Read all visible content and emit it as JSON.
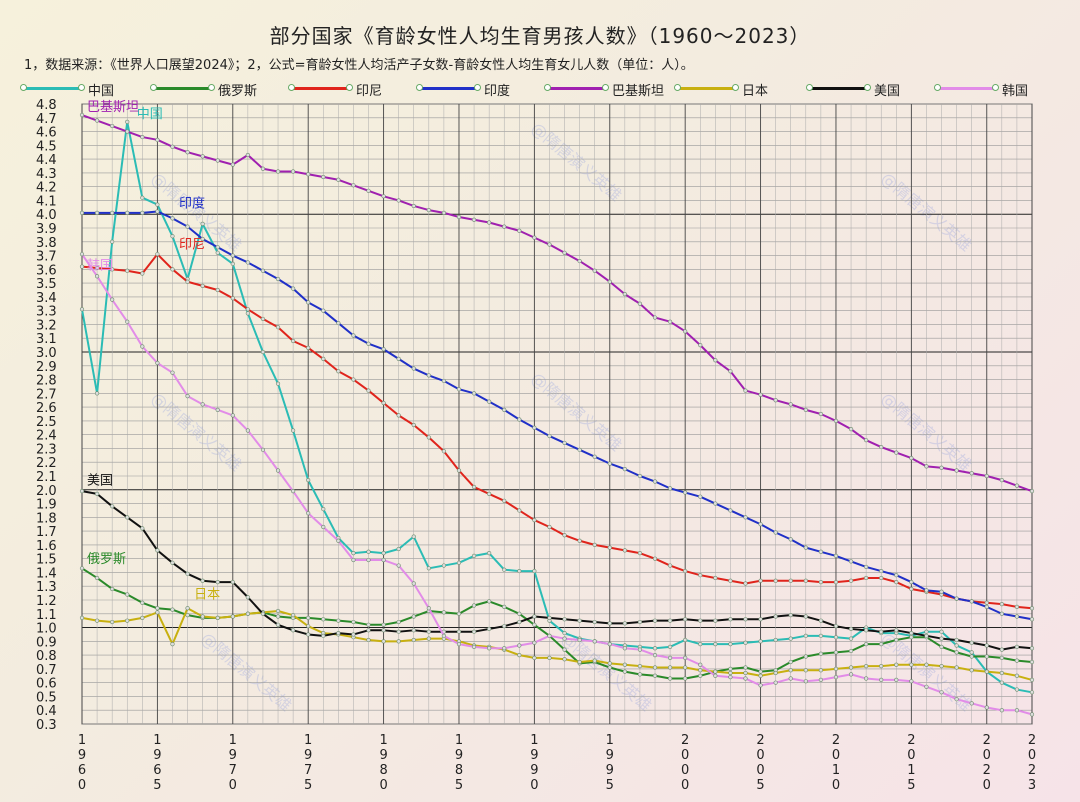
{
  "title": "部分国家《育龄女性人均生育男孩人数》（1960～2023）",
  "note": "1，数据来源：《世界人口展望2024》；2，公式=育龄女性人均活产子女数-育龄女性人均生育女儿人数（单位：人）。",
  "watermark": "@隋唐演义英雄",
  "colors": {
    "中国": "#2bbcb5",
    "俄罗斯": "#2a8a2a",
    "印尼": "#e0241c",
    "印度": "#2030c8",
    "巴基斯坦": "#a020b0",
    "日本": "#c8b010",
    "美国": "#111111",
    "韩国": "#e28ce8"
  },
  "chart_data": {
    "type": "line",
    "title": "部分国家《育龄女性人均生育男孩人数》（1960～2023）",
    "xlabel": "",
    "ylabel": "",
    "xlim": [
      1960,
      2023
    ],
    "ylim": [
      0.3,
      4.8
    ],
    "yticks": [
      "0.3",
      "0.4",
      "0.5",
      "0.6",
      "0.7",
      "0.8",
      "0.9",
      "1.0",
      "1.1",
      "1.2",
      "1.3",
      "1.4",
      "1.5",
      "1.6",
      "1.7",
      "1.8",
      "1.9",
      "2.0",
      "2.1",
      "2.2",
      "2.3",
      "2.4",
      "2.5",
      "2.6",
      "2.7",
      "2.8",
      "2.9",
      "3.0",
      "3.1",
      "3.2",
      "3.3",
      "3.4",
      "3.5",
      "3.6",
      "3.7",
      "3.8",
      "3.9",
      "4.0",
      "4.1",
      "4.2",
      "4.3",
      "4.4",
      "4.5",
      "4.6",
      "4.7",
      "4.8"
    ],
    "xticks": [
      {
        "year": 1960,
        "label": "1960"
      },
      {
        "year": 1965,
        "label": "1965"
      },
      {
        "year": 1970,
        "label": "1970"
      },
      {
        "year": 1975,
        "label": "1975"
      },
      {
        "year": 1980,
        "label": "1980"
      },
      {
        "year": 1985,
        "label": "1985"
      },
      {
        "year": 1990,
        "label": "1990"
      },
      {
        "year": 1995,
        "label": "1995"
      },
      {
        "year": 2000,
        "label": "2000"
      },
      {
        "year": 2005,
        "label": "2005"
      },
      {
        "year": 2010,
        "label": "2010"
      },
      {
        "year": 2015,
        "label": "2015"
      },
      {
        "year": 2020,
        "label": "2020"
      },
      {
        "year": 2023,
        "label": "2023"
      }
    ],
    "grid": true,
    "legend_position": "top",
    "x": [
      1960,
      1961,
      1962,
      1963,
      1964,
      1965,
      1966,
      1967,
      1968,
      1969,
      1970,
      1971,
      1972,
      1973,
      1974,
      1975,
      1976,
      1977,
      1978,
      1979,
      1980,
      1981,
      1982,
      1983,
      1984,
      1985,
      1986,
      1987,
      1988,
      1989,
      1990,
      1991,
      1992,
      1993,
      1994,
      1995,
      1996,
      1997,
      1998,
      1999,
      2000,
      2001,
      2002,
      2003,
      2004,
      2005,
      2006,
      2007,
      2008,
      2009,
      2010,
      2011,
      2012,
      2013,
      2014,
      2015,
      2016,
      2017,
      2018,
      2019,
      2020,
      2021,
      2022,
      2023
    ],
    "series": [
      {
        "name": "中国",
        "label_year": 1963.5,
        "label_value": 4.7,
        "values": [
          3.31,
          2.7,
          3.8,
          4.67,
          4.12,
          4.07,
          3.84,
          3.53,
          3.93,
          3.72,
          3.64,
          3.28,
          3.0,
          2.77,
          2.43,
          2.07,
          1.86,
          1.65,
          1.54,
          1.55,
          1.54,
          1.57,
          1.66,
          1.43,
          1.45,
          1.47,
          1.52,
          1.54,
          1.42,
          1.41,
          1.41,
          1.05,
          0.96,
          0.92,
          0.9,
          0.88,
          0.87,
          0.86,
          0.85,
          0.86,
          0.91,
          0.88,
          0.88,
          0.88,
          0.89,
          0.9,
          0.91,
          0.92,
          0.94,
          0.94,
          0.93,
          0.92,
          1.0,
          0.96,
          0.96,
          0.94,
          0.97,
          0.97,
          0.87,
          0.82,
          0.68,
          0.6,
          0.55,
          0.53
        ]
      },
      {
        "name": "俄罗斯",
        "label_year": 1960.2,
        "label_value": 1.47,
        "values": [
          1.43,
          1.36,
          1.28,
          1.24,
          1.18,
          1.14,
          1.13,
          1.09,
          1.07,
          1.07,
          1.08,
          1.1,
          1.11,
          1.08,
          1.07,
          1.07,
          1.06,
          1.05,
          1.04,
          1.02,
          1.02,
          1.04,
          1.08,
          1.12,
          1.11,
          1.1,
          1.16,
          1.19,
          1.15,
          1.1,
          1.02,
          0.94,
          0.84,
          0.74,
          0.75,
          0.71,
          0.68,
          0.66,
          0.65,
          0.63,
          0.63,
          0.65,
          0.68,
          0.7,
          0.71,
          0.68,
          0.69,
          0.75,
          0.79,
          0.81,
          0.82,
          0.83,
          0.88,
          0.88,
          0.91,
          0.93,
          0.93,
          0.86,
          0.82,
          0.79,
          0.79,
          0.78,
          0.76,
          0.75
        ]
      },
      {
        "name": "印尼",
        "label_year": 1966.3,
        "label_value": 3.75,
        "values": [
          3.62,
          3.61,
          3.6,
          3.59,
          3.57,
          3.71,
          3.6,
          3.51,
          3.48,
          3.45,
          3.39,
          3.31,
          3.24,
          3.18,
          3.08,
          3.03,
          2.95,
          2.86,
          2.8,
          2.72,
          2.63,
          2.54,
          2.47,
          2.38,
          2.28,
          2.14,
          2.02,
          1.97,
          1.92,
          1.85,
          1.78,
          1.73,
          1.67,
          1.63,
          1.6,
          1.58,
          1.56,
          1.54,
          1.5,
          1.45,
          1.41,
          1.38,
          1.36,
          1.34,
          1.32,
          1.34,
          1.34,
          1.34,
          1.34,
          1.33,
          1.33,
          1.34,
          1.36,
          1.36,
          1.33,
          1.28,
          1.26,
          1.24,
          1.21,
          1.19,
          1.18,
          1.17,
          1.15,
          1.14
        ]
      },
      {
        "name": "印度",
        "label_year": 1966.3,
        "label_value": 4.05,
        "values": [
          4.01,
          4.01,
          4.01,
          4.01,
          4.01,
          4.02,
          3.97,
          3.91,
          3.82,
          3.76,
          3.7,
          3.65,
          3.59,
          3.53,
          3.46,
          3.36,
          3.3,
          3.21,
          3.12,
          3.06,
          3.02,
          2.95,
          2.88,
          2.83,
          2.79,
          2.73,
          2.7,
          2.64,
          2.58,
          2.51,
          2.45,
          2.39,
          2.34,
          2.29,
          2.24,
          2.19,
          2.15,
          2.1,
          2.06,
          2.01,
          1.98,
          1.95,
          1.9,
          1.85,
          1.8,
          1.75,
          1.69,
          1.64,
          1.58,
          1.55,
          1.52,
          1.48,
          1.44,
          1.41,
          1.38,
          1.33,
          1.27,
          1.26,
          1.21,
          1.19,
          1.15,
          1.1,
          1.08,
          1.06
        ]
      },
      {
        "name": "巴基斯坦",
        "label_year": 1960.2,
        "label_value": 4.75,
        "values": [
          4.72,
          4.68,
          4.64,
          4.6,
          4.56,
          4.54,
          4.49,
          4.45,
          4.42,
          4.39,
          4.36,
          4.43,
          4.33,
          4.31,
          4.31,
          4.29,
          4.27,
          4.25,
          4.21,
          4.17,
          4.13,
          4.1,
          4.06,
          4.03,
          4.01,
          3.98,
          3.96,
          3.94,
          3.91,
          3.88,
          3.83,
          3.78,
          3.72,
          3.66,
          3.59,
          3.51,
          3.42,
          3.35,
          3.25,
          3.22,
          3.15,
          3.05,
          2.94,
          2.86,
          2.72,
          2.69,
          2.65,
          2.62,
          2.58,
          2.55,
          2.5,
          2.44,
          2.36,
          2.31,
          2.27,
          2.23,
          2.17,
          2.16,
          2.14,
          2.12,
          2.1,
          2.07,
          2.03,
          1.99
        ]
      },
      {
        "name": "日本",
        "label_year": 1967.3,
        "label_value": 1.21,
        "values": [
          1.07,
          1.05,
          1.04,
          1.05,
          1.07,
          1.11,
          0.88,
          1.14,
          1.08,
          1.07,
          1.08,
          1.1,
          1.11,
          1.12,
          1.09,
          1.01,
          0.96,
          0.95,
          0.93,
          0.91,
          0.9,
          0.9,
          0.91,
          0.92,
          0.92,
          0.9,
          0.87,
          0.86,
          0.84,
          0.8,
          0.78,
          0.78,
          0.77,
          0.75,
          0.76,
          0.74,
          0.73,
          0.72,
          0.71,
          0.71,
          0.71,
          0.69,
          0.68,
          0.67,
          0.67,
          0.65,
          0.67,
          0.69,
          0.69,
          0.69,
          0.7,
          0.71,
          0.72,
          0.72,
          0.73,
          0.73,
          0.73,
          0.72,
          0.71,
          0.69,
          0.68,
          0.67,
          0.65,
          0.62
        ]
      },
      {
        "name": "美国",
        "label_year": 1960.2,
        "label_value": 2.04,
        "values": [
          1.99,
          1.97,
          1.88,
          1.8,
          1.72,
          1.56,
          1.47,
          1.39,
          1.34,
          1.33,
          1.33,
          1.22,
          1.1,
          1.02,
          0.98,
          0.95,
          0.94,
          0.96,
          0.95,
          0.98,
          0.98,
          0.97,
          0.98,
          0.97,
          0.97,
          0.97,
          0.97,
          0.99,
          1.01,
          1.04,
          1.08,
          1.07,
          1.06,
          1.05,
          1.04,
          1.03,
          1.03,
          1.04,
          1.05,
          1.05,
          1.06,
          1.05,
          1.05,
          1.06,
          1.06,
          1.06,
          1.08,
          1.09,
          1.08,
          1.05,
          1.01,
          0.99,
          0.98,
          0.97,
          0.98,
          0.96,
          0.94,
          0.92,
          0.91,
          0.89,
          0.87,
          0.84,
          0.86,
          0.85
        ]
      },
      {
        "name": "韩国",
        "label_year": 1960.2,
        "label_value": 3.6,
        "values": [
          3.71,
          3.55,
          3.38,
          3.22,
          3.04,
          2.92,
          2.85,
          2.68,
          2.62,
          2.58,
          2.54,
          2.43,
          2.29,
          2.14,
          1.99,
          1.83,
          1.73,
          1.63,
          1.49,
          1.49,
          1.49,
          1.45,
          1.32,
          1.14,
          0.94,
          0.88,
          0.86,
          0.85,
          0.85,
          0.87,
          0.89,
          0.94,
          0.92,
          0.91,
          0.9,
          0.88,
          0.85,
          0.84,
          0.8,
          0.78,
          0.78,
          0.73,
          0.65,
          0.64,
          0.63,
          0.58,
          0.6,
          0.63,
          0.61,
          0.62,
          0.64,
          0.66,
          0.63,
          0.62,
          0.62,
          0.61,
          0.57,
          0.53,
          0.48,
          0.45,
          0.42,
          0.4,
          0.4,
          0.37
        ]
      }
    ]
  }
}
